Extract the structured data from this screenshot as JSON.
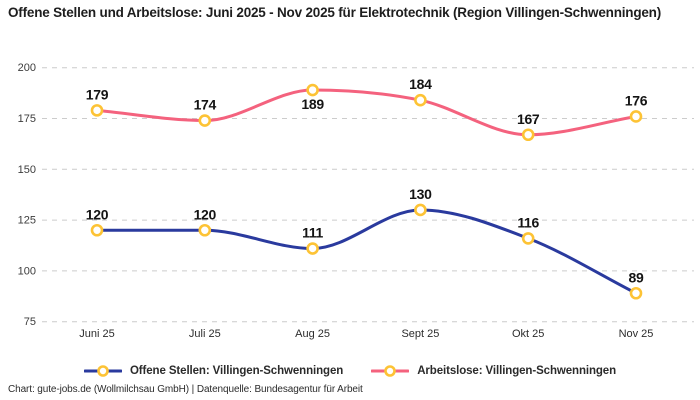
{
  "chart_data": {
    "type": "line",
    "title": "Offene Stellen und Arbeitslose: Juni 2025 - Nov 2025 für Elektrotechnik (Region Villingen-Schwenningen)",
    "categories": [
      "Juni 25",
      "Juli 25",
      "Aug 25",
      "Sept 25",
      "Okt 25",
      "Nov 25"
    ],
    "series": [
      {
        "name": "Offene Stellen: Villingen-Schwenningen",
        "color": "#2a3a9e",
        "values": [
          120,
          120,
          111,
          130,
          116,
          89
        ],
        "labels_below": []
      },
      {
        "name": "Arbeitslose: Villingen-Schwenningen",
        "color": "#f4627e",
        "values": [
          179,
          174,
          189,
          184,
          167,
          176
        ],
        "labels_below": [
          2
        ]
      }
    ],
    "marker": {
      "fill": "#ffffff",
      "stroke": "#fdc335"
    },
    "ylim": [
      75,
      200
    ],
    "yticks": [
      75,
      100,
      125,
      150,
      175,
      200
    ],
    "grid": {
      "style": "dashed",
      "color": "#cccccc"
    },
    "legend_position": "bottom",
    "xlabel": "",
    "ylabel": ""
  },
  "footer": {
    "credit": "Chart: gute-jobs.de (Wollmilchsau GmbH) | Datenquelle: Bundesagentur für Arbeit"
  }
}
